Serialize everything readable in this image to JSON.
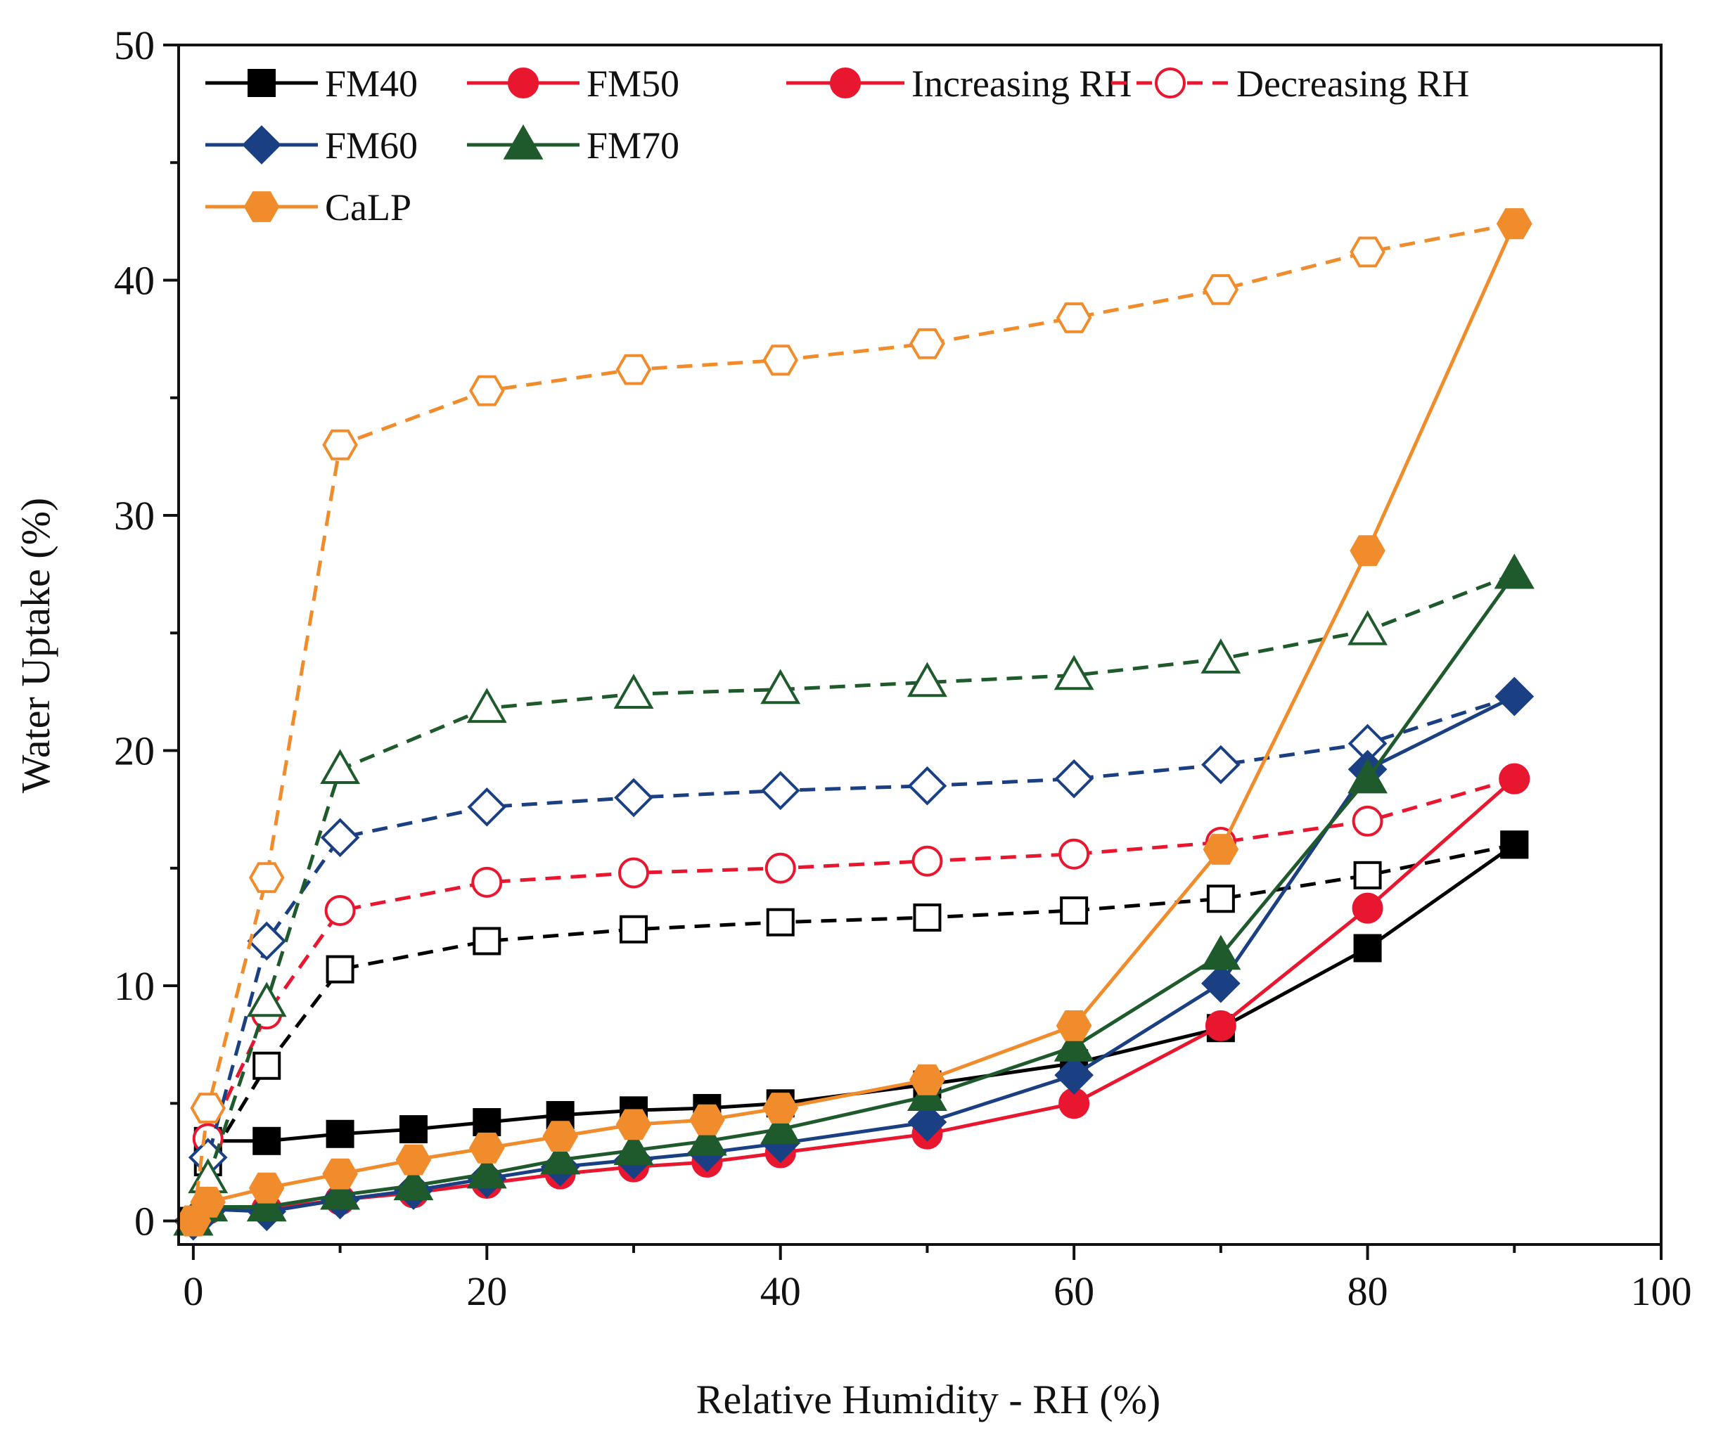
{
  "chart_data": {
    "type": "line",
    "title": "",
    "xlabel": "Relative Humidity - RH (%)",
    "ylabel": "Water Uptake (%)",
    "xlim": [
      -1,
      100
    ],
    "ylim": [
      -1,
      50
    ],
    "xticks": [
      0,
      20,
      40,
      60,
      80,
      100
    ],
    "yticks": [
      0,
      10,
      20,
      30,
      40,
      50
    ],
    "legend_position": "top-left",
    "legend": {
      "series_entries": [
        "FM40",
        "FM50",
        "FM60",
        "FM70",
        "CaLP"
      ],
      "style_entries": [
        {
          "label": "Increasing RH",
          "style": "solid-filled"
        },
        {
          "label": "Decreasing RH",
          "style": "dashed-open"
        }
      ]
    },
    "series": [
      {
        "name": "FM40",
        "color": "#000000",
        "marker": "square",
        "increasing": {
          "x": [
            0,
            1,
            5,
            10,
            15,
            20,
            25,
            30,
            35,
            40,
            50,
            60,
            70,
            80,
            90
          ],
          "y": [
            0,
            3.4,
            3.4,
            3.7,
            3.9,
            4.2,
            4.5,
            4.7,
            4.8,
            5.0,
            5.8,
            6.7,
            8.2,
            11.6,
            16.0
          ]
        },
        "decreasing": {
          "x": [
            90,
            80,
            70,
            60,
            50,
            40,
            30,
            20,
            10,
            5,
            1,
            0
          ],
          "y": [
            16.0,
            14.7,
            13.7,
            13.2,
            12.9,
            12.7,
            12.4,
            11.9,
            10.7,
            6.6,
            2.5,
            0
          ]
        }
      },
      {
        "name": "FM50",
        "color": "#e8172f",
        "marker": "circle",
        "increasing": {
          "x": [
            0,
            1,
            5,
            10,
            15,
            20,
            25,
            30,
            35,
            40,
            50,
            60,
            70,
            80,
            90
          ],
          "y": [
            0,
            0.5,
            0.5,
            0.9,
            1.2,
            1.6,
            2.0,
            2.3,
            2.5,
            2.9,
            3.7,
            5.0,
            8.3,
            13.3,
            18.8
          ]
        },
        "decreasing": {
          "x": [
            90,
            80,
            70,
            60,
            50,
            40,
            30,
            20,
            10,
            5,
            1,
            0
          ],
          "y": [
            18.8,
            17.0,
            16.1,
            15.6,
            15.3,
            15.0,
            14.8,
            14.4,
            13.2,
            8.8,
            3.5,
            0
          ]
        }
      },
      {
        "name": "FM60",
        "color": "#1a3f82",
        "marker": "diamond",
        "increasing": {
          "x": [
            0,
            1,
            5,
            10,
            15,
            20,
            25,
            30,
            35,
            40,
            50,
            60,
            70,
            80,
            90
          ],
          "y": [
            0,
            0.5,
            0.4,
            0.9,
            1.3,
            1.8,
            2.3,
            2.6,
            2.9,
            3.3,
            4.2,
            6.2,
            10.1,
            19.2,
            22.3
          ]
        },
        "decreasing": {
          "x": [
            90,
            80,
            70,
            60,
            50,
            40,
            30,
            20,
            10,
            5,
            1,
            0
          ],
          "y": [
            22.3,
            20.3,
            19.4,
            18.8,
            18.5,
            18.3,
            18.0,
            17.6,
            16.3,
            11.9,
            2.7,
            0
          ]
        }
      },
      {
        "name": "FM70",
        "color": "#1e5a2c",
        "marker": "triangle",
        "increasing": {
          "x": [
            0,
            1,
            5,
            10,
            15,
            20,
            25,
            30,
            35,
            40,
            50,
            60,
            70,
            80,
            90
          ],
          "y": [
            0,
            0.6,
            0.6,
            1.1,
            1.5,
            2.0,
            2.6,
            3.0,
            3.4,
            3.9,
            5.3,
            7.4,
            11.3,
            18.8,
            27.5
          ]
        },
        "decreasing": {
          "x": [
            90,
            80,
            70,
            60,
            50,
            40,
            30,
            20,
            10,
            5,
            1,
            0
          ],
          "y": [
            27.5,
            25.1,
            23.9,
            23.2,
            22.9,
            22.6,
            22.4,
            21.8,
            19.2,
            9.3,
            1.8,
            0
          ]
        }
      },
      {
        "name": "CaLP",
        "color": "#f08c2c",
        "marker": "hexagon",
        "increasing": {
          "x": [
            0,
            1,
            5,
            10,
            15,
            20,
            25,
            30,
            35,
            40,
            50,
            60,
            70,
            80,
            90
          ],
          "y": [
            0,
            0.8,
            1.4,
            2.0,
            2.6,
            3.1,
            3.6,
            4.1,
            4.3,
            4.8,
            6.0,
            8.3,
            15.8,
            28.5,
            42.4
          ]
        },
        "decreasing": {
          "x": [
            90,
            80,
            70,
            60,
            50,
            40,
            30,
            20,
            10,
            5,
            1,
            0
          ],
          "y": [
            42.4,
            41.2,
            39.6,
            38.4,
            37.3,
            36.6,
            36.2,
            35.3,
            33.0,
            14.6,
            4.8,
            0
          ]
        }
      }
    ]
  }
}
